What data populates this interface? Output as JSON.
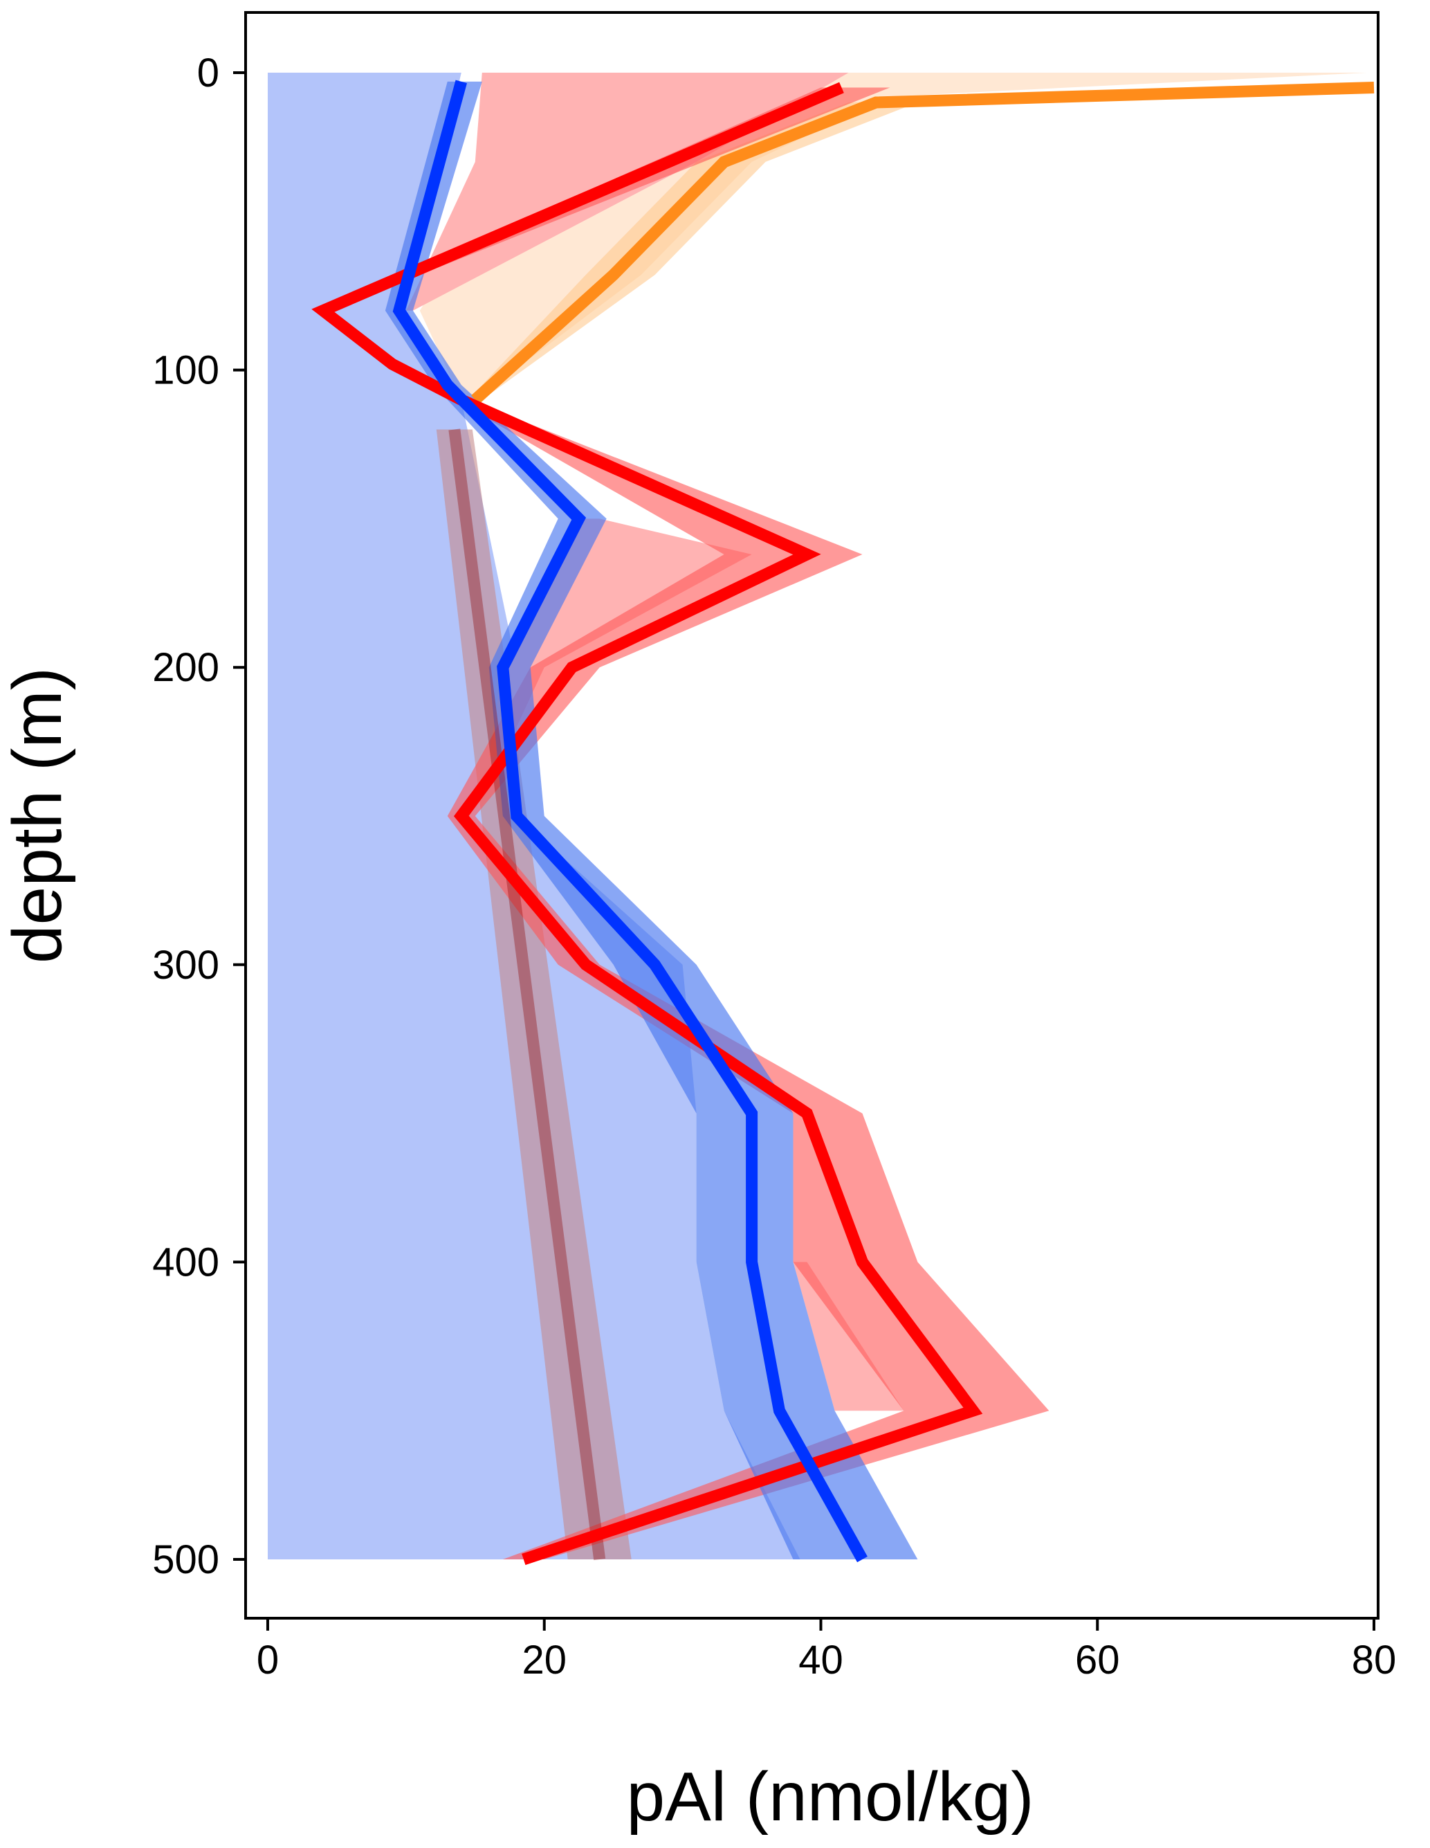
{
  "chart_data": {
    "type": "line",
    "title": "",
    "xlabel": "pAl (nmol/kg)",
    "ylabel": "depth (m)",
    "xlim": [
      -1.6,
      80.3
    ],
    "ylim": [
      500,
      0
    ],
    "y_inverted": true,
    "grid": false,
    "legend": "none",
    "xticks": [
      0,
      20,
      40,
      60,
      80
    ],
    "yticks": [
      0,
      100,
      200,
      300,
      400,
      500
    ],
    "series": [
      {
        "color": "#8b0000",
        "fill_color": "#c48a8c",
        "line_opacity": 0.35,
        "fill_opacity": 0.6,
        "points": [
          {
            "x": 13.5,
            "y": 120
          },
          {
            "x": 24,
            "y": 500
          }
        ],
        "lower": [
          {
            "x": 12.2,
            "y": 120
          },
          {
            "x": 21.7,
            "y": 500
          }
        ],
        "upper": [
          {
            "x": 14.8,
            "y": 120
          },
          {
            "x": 26.3,
            "y": 500
          }
        ]
      },
      {
        "color": "#ff8c1a",
        "fill_color": "#ffc98f",
        "line_opacity": 1,
        "fill_opacity": 0.6,
        "points": [
          {
            "x": 80,
            "y": 5
          },
          {
            "x": 44,
            "y": 10
          },
          {
            "x": 33,
            "y": 30
          },
          {
            "x": 25,
            "y": 68
          },
          {
            "x": 15,
            "y": 110
          }
        ],
        "lower": [
          {
            "x": 79,
            "y": 5
          },
          {
            "x": 42,
            "y": 10
          },
          {
            "x": 31,
            "y": 30
          },
          {
            "x": 23,
            "y": 68
          },
          {
            "x": 14.5,
            "y": 110
          }
        ],
        "upper": [
          {
            "x": 80.3,
            "y": 5
          },
          {
            "x": 47,
            "y": 10
          },
          {
            "x": 36,
            "y": 30
          },
          {
            "x": 28,
            "y": 68
          },
          {
            "x": 15.5,
            "y": 110
          }
        ]
      },
      {
        "color": "#ff0000",
        "fill_color": "#ff5555",
        "line_opacity": 1,
        "fill_opacity": 0.6,
        "points": [
          {
            "x": 41.5,
            "y": 5
          },
          {
            "x": 4,
            "y": 80
          },
          {
            "x": 9,
            "y": 98
          },
          {
            "x": 14,
            "y": 110
          },
          {
            "x": 39,
            "y": 162
          },
          {
            "x": 22,
            "y": 200
          },
          {
            "x": 14,
            "y": 250
          },
          {
            "x": 23,
            "y": 300
          },
          {
            "x": 39,
            "y": 350
          },
          {
            "x": 43,
            "y": 400
          },
          {
            "x": 51,
            "y": 450
          },
          {
            "x": 18.5,
            "y": 500
          }
        ],
        "lower": [
          {
            "x": 40,
            "y": 5
          },
          {
            "x": 3.5,
            "y": 80
          },
          {
            "x": 8.5,
            "y": 98
          },
          {
            "x": 13.5,
            "y": 110
          },
          {
            "x": 33,
            "y": 162
          },
          {
            "x": 19,
            "y": 200
          },
          {
            "x": 13,
            "y": 250
          },
          {
            "x": 21,
            "y": 300
          },
          {
            "x": 38,
            "y": 350
          },
          {
            "x": 38,
            "y": 400
          },
          {
            "x": 46,
            "y": 450
          },
          {
            "x": 17,
            "y": 500
          }
        ],
        "upper": [
          {
            "x": 45,
            "y": 5
          },
          {
            "x": 4.5,
            "y": 80
          },
          {
            "x": 9.5,
            "y": 98
          },
          {
            "x": 14.5,
            "y": 110
          },
          {
            "x": 43,
            "y": 162
          },
          {
            "x": 24,
            "y": 200
          },
          {
            "x": 15,
            "y": 250
          },
          {
            "x": 24,
            "y": 300
          },
          {
            "x": 43,
            "y": 350
          },
          {
            "x": 47,
            "y": 400
          },
          {
            "x": 56.5,
            "y": 450
          },
          {
            "x": 20,
            "y": 500
          }
        ]
      },
      {
        "color": "#0033ff",
        "fill_color": "#4a78f0",
        "line_opacity": 1,
        "fill_opacity": 0.65,
        "points": [
          {
            "x": 14,
            "y": 3
          },
          {
            "x": 9.5,
            "y": 80
          },
          {
            "x": 13,
            "y": 105
          },
          {
            "x": 22.5,
            "y": 150
          },
          {
            "x": 17,
            "y": 200
          },
          {
            "x": 18,
            "y": 250
          },
          {
            "x": 28,
            "y": 300
          },
          {
            "x": 35,
            "y": 350
          },
          {
            "x": 35,
            "y": 400
          },
          {
            "x": 37,
            "y": 450
          },
          {
            "x": 43,
            "y": 500
          }
        ],
        "lower": [
          {
            "x": 13,
            "y": 3
          },
          {
            "x": 8.5,
            "y": 80
          },
          {
            "x": 12,
            "y": 105
          },
          {
            "x": 21,
            "y": 150
          },
          {
            "x": 16,
            "y": 200
          },
          {
            "x": 17,
            "y": 250
          },
          {
            "x": 25,
            "y": 300
          },
          {
            "x": 31,
            "y": 350
          },
          {
            "x": 31,
            "y": 400
          },
          {
            "x": 33,
            "y": 450
          },
          {
            "x": 38,
            "y": 500
          }
        ],
        "upper": [
          {
            "x": 15.5,
            "y": 3
          },
          {
            "x": 10.5,
            "y": 80
          },
          {
            "x": 14,
            "y": 105
          },
          {
            "x": 24.5,
            "y": 150
          },
          {
            "x": 19,
            "y": 200
          },
          {
            "x": 20,
            "y": 250
          },
          {
            "x": 31,
            "y": 300
          },
          {
            "x": 38,
            "y": 350
          },
          {
            "x": 38,
            "y": 400
          },
          {
            "x": 41,
            "y": 450
          },
          {
            "x": 47,
            "y": 500
          }
        ]
      }
    ],
    "bands": [
      {
        "fill_color": "#b3c4fa",
        "fill_opacity": 1,
        "lower": [
          {
            "x": 0,
            "y": 0
          },
          {
            "x": 0,
            "y": 500
          }
        ],
        "upper": [
          {
            "x": 14,
            "y": 0
          },
          {
            "x": 10,
            "y": 80
          },
          {
            "x": 14,
            "y": 110
          },
          {
            "x": 18,
            "y": 200
          },
          {
            "x": 18,
            "y": 250
          },
          {
            "x": 30,
            "y": 300
          },
          {
            "x": 31,
            "y": 350
          },
          {
            "x": 31,
            "y": 400
          },
          {
            "x": 33,
            "y": 450
          },
          {
            "x": 38.5,
            "y": 500
          }
        ]
      },
      {
        "fill_color": "#ffe8d4",
        "fill_opacity": 1,
        "lower": [
          {
            "x": 40,
            "y": 0
          },
          {
            "x": 15,
            "y": 50
          },
          {
            "x": 11,
            "y": 80
          },
          {
            "x": 14,
            "y": 110
          }
        ],
        "upper": [
          {
            "x": 79.5,
            "y": 0
          },
          {
            "x": 45,
            "y": 8
          },
          {
            "x": 35,
            "y": 30
          },
          {
            "x": 27,
            "y": 68
          },
          {
            "x": 15,
            "y": 110
          }
        ]
      },
      {
        "fill_color": "#ffb3b3",
        "fill_opacity": 1,
        "lower": [
          {
            "x": 15.5,
            "y": 0
          },
          {
            "x": 15,
            "y": 30
          },
          {
            "x": 10,
            "y": 80
          }
        ],
        "upper": [
          {
            "x": 42,
            "y": 0
          },
          {
            "x": 31,
            "y": 30
          },
          {
            "x": 10.5,
            "y": 80
          }
        ]
      },
      {
        "fill_color": "#ffb3b3",
        "fill_opacity": 1,
        "lower": [
          {
            "x": 22,
            "y": 150
          },
          {
            "x": 17,
            "y": 200
          },
          {
            "x": 16,
            "y": 230
          }
        ],
        "upper": [
          {
            "x": 24,
            "y": 150
          },
          {
            "x": 35,
            "y": 162
          },
          {
            "x": 20,
            "y": 200
          },
          {
            "x": 17,
            "y": 230
          }
        ]
      },
      {
        "fill_color": "#ffb3b3",
        "fill_opacity": 1,
        "lower": [
          {
            "x": 38,
            "y": 400
          },
          {
            "x": 41,
            "y": 450
          }
        ],
        "upper": [
          {
            "x": 39,
            "y": 400
          },
          {
            "x": 46,
            "y": 450
          }
        ]
      }
    ]
  }
}
